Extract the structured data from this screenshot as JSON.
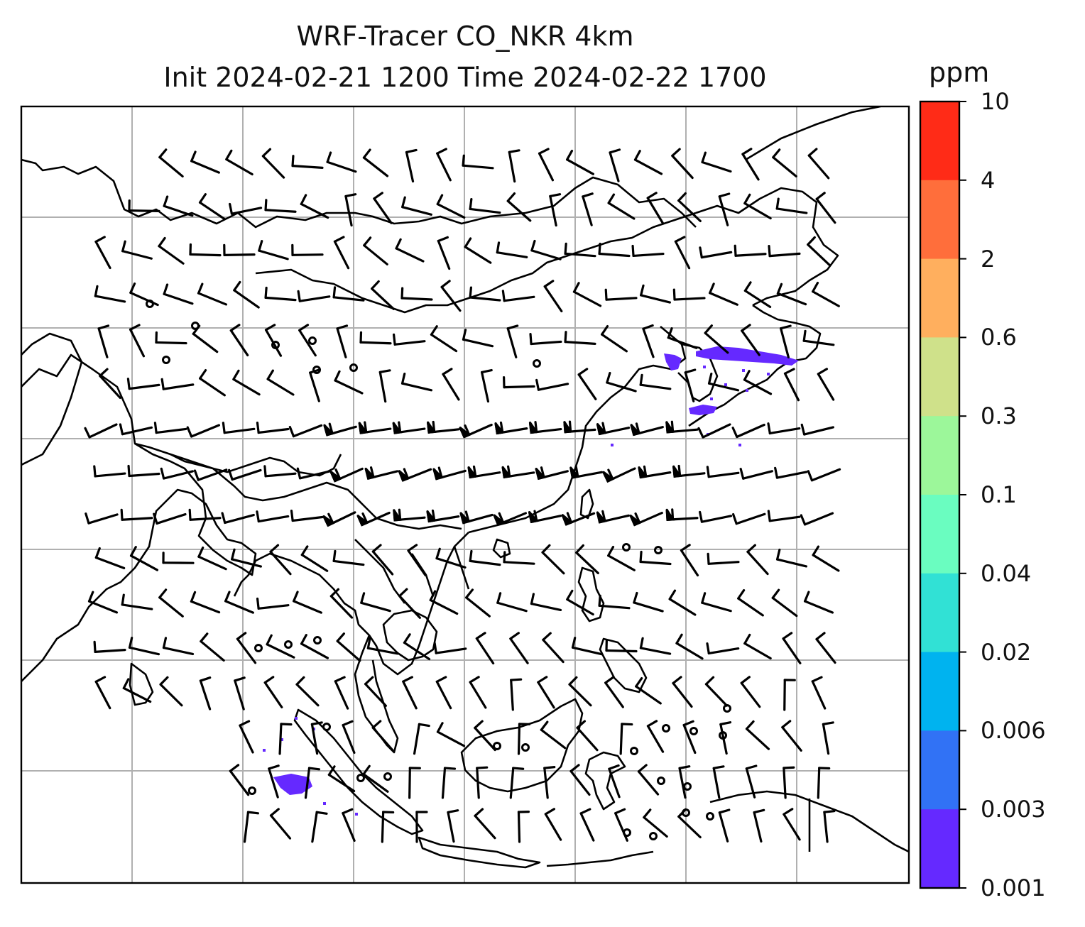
{
  "title": {
    "line1": "WRF-Tracer CO_NKR 4km",
    "line2": "Init 2024-02-21 1200 Time 2024-02-22 1700"
  },
  "colorbar": {
    "unit": "ppm",
    "ticks": [
      "10",
      "4",
      "2",
      "0.6",
      "0.3",
      "0.1",
      "0.04",
      "0.02",
      "0.006",
      "0.003",
      "0.001"
    ],
    "colors": [
      "#ff2b17",
      "#ff6e3b",
      "#ffaf5e",
      "#cfe18a",
      "#9cf79a",
      "#6afdc0",
      "#31e1d5",
      "#00b3ef",
      "#3172f5",
      "#6529ff"
    ]
  },
  "map": {
    "plume_color": "#6529ff",
    "grid_color": "#b0b0b0",
    "coast_color": "#000000"
  }
}
